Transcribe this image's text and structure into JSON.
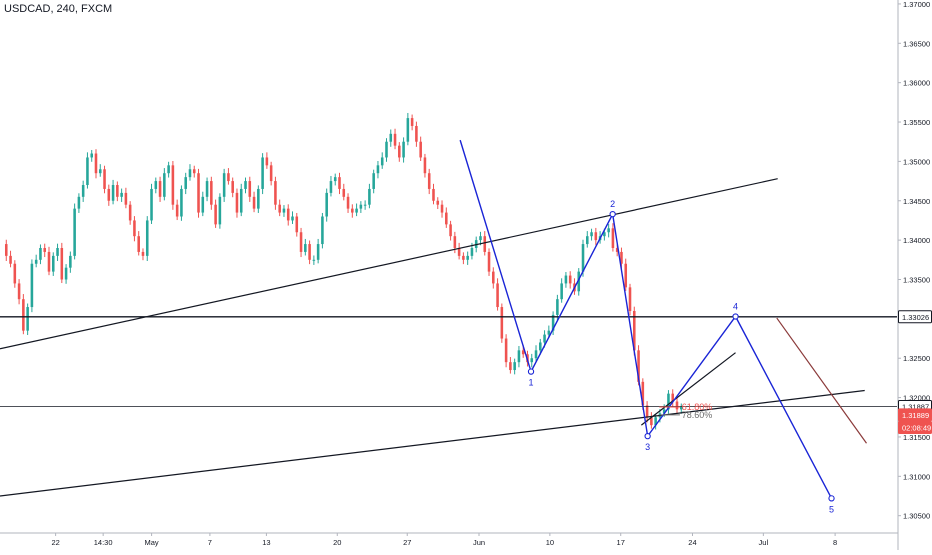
{
  "symbol_title": "USDCAD, 240, FXCM",
  "chart_data": {
    "type": "candlestick",
    "title": "USDCAD, 240, FXCM",
    "y_axis": {
      "ylim": [
        1.3028,
        1.3705
      ],
      "ticks": [
        1.305,
        1.31,
        1.315,
        1.32,
        1.325,
        1.33,
        1.335,
        1.34,
        1.345,
        1.35,
        1.355,
        1.36,
        1.365,
        1.37
      ],
      "tick_labels": [
        "1.30500",
        "1.31000",
        "1.31500",
        "1.32000",
        "1.32500",
        "1.33000",
        "1.33500",
        "1.34000",
        "1.34500",
        "1.35000",
        "1.35500",
        "1.36000",
        "1.36500",
        "1.37000"
      ]
    },
    "x_axis": {
      "ticks": [
        {
          "label": "22",
          "frac": 0.062
        },
        {
          "label": "14:30",
          "frac": 0.115
        },
        {
          "label": "May",
          "frac": 0.169
        },
        {
          "label": "7",
          "frac": 0.234
        },
        {
          "label": "13",
          "frac": 0.297
        },
        {
          "label": "20",
          "frac": 0.376
        },
        {
          "label": "27",
          "frac": 0.454
        },
        {
          "label": "Jun",
          "frac": 0.534
        },
        {
          "label": "10",
          "frac": 0.613
        },
        {
          "label": "17",
          "frac": 0.692
        },
        {
          "label": "24",
          "frac": 0.772
        },
        {
          "label": "Jul",
          "frac": 0.851
        },
        {
          "label": "8",
          "frac": 0.931
        }
      ]
    },
    "price_series": [
      1.3395,
      1.338,
      1.337,
      1.3345,
      1.3325,
      1.3285,
      1.3315,
      1.337,
      1.3375,
      1.339,
      1.3385,
      1.336,
      1.338,
      1.339,
      1.335,
      1.3365,
      1.338,
      1.344,
      1.3455,
      1.347,
      1.3505,
      1.351,
      1.3485,
      1.349,
      1.3465,
      1.345,
      1.347,
      1.3455,
      1.346,
      1.3445,
      1.3425,
      1.3405,
      1.3385,
      1.338,
      1.3425,
      1.3465,
      1.3475,
      1.3455,
      1.3485,
      1.3495,
      1.3445,
      1.343,
      1.3465,
      1.348,
      1.349,
      1.3485,
      1.3435,
      1.3455,
      1.3475,
      1.3445,
      1.342,
      1.3455,
      1.3485,
      1.3475,
      1.346,
      1.3435,
      1.3465,
      1.3475,
      1.3455,
      1.344,
      1.3465,
      1.3505,
      1.3495,
      1.3475,
      1.3445,
      1.3435,
      1.344,
      1.3425,
      1.343,
      1.341,
      1.3385,
      1.3395,
      1.3375,
      1.3375,
      1.3395,
      1.343,
      1.346,
      1.3475,
      1.348,
      1.3465,
      1.3455,
      1.344,
      1.3435,
      1.344,
      1.3445,
      1.3445,
      1.3465,
      1.3485,
      1.3495,
      1.3505,
      1.3525,
      1.3535,
      1.352,
      1.3505,
      1.3525,
      1.3555,
      1.3545,
      1.3525,
      1.3505,
      1.3485,
      1.3465,
      1.345,
      1.3445,
      1.3435,
      1.342,
      1.3405,
      1.339,
      1.338,
      1.3375,
      1.338,
      1.339,
      1.34,
      1.3405,
      1.3385,
      1.336,
      1.3345,
      1.3315,
      1.3275,
      1.3245,
      1.3235,
      1.3245,
      1.326,
      1.3255,
      1.3245,
      1.325,
      1.326,
      1.327,
      1.328,
      1.3285,
      1.3305,
      1.3325,
      1.3345,
      1.3355,
      1.3345,
      1.3335,
      1.336,
      1.3395,
      1.3405,
      1.341,
      1.34,
      1.3405,
      1.341,
      1.3415,
      1.339,
      1.3385,
      1.337,
      1.334,
      1.331,
      1.326,
      1.322,
      1.319,
      1.3175,
      1.3165,
      1.3175,
      1.318,
      1.3185,
      1.3205,
      1.3195,
      1.3185,
      1.3188
    ],
    "series_fracs": [
      0.0,
      0.7595
    ],
    "candle_colors": {
      "up": "#26a69a",
      "down": "#ef5350"
    },
    "trendlines": [
      {
        "name": "upper-channel-line",
        "x": [
          0.0,
          0.867
        ],
        "y": [
          1.3262,
          1.3478
        ],
        "color": "#131722"
      },
      {
        "name": "lower-channel-line",
        "x": [
          0.0,
          0.964
        ],
        "y": [
          1.3075,
          1.3209
        ],
        "color": "#131722"
      },
      {
        "name": "short-channel-line",
        "x": [
          0.715,
          0.82
        ],
        "y": [
          1.3165,
          1.3257
        ],
        "color": "#131722"
      },
      {
        "name": "target-line",
        "x": [
          0.866,
          0.966
        ],
        "y": [
          1.3301,
          1.3142
        ],
        "color": "#8b3a3a"
      }
    ],
    "horizontal_lines": [
      {
        "name": "resistance-line",
        "price": 1.33026,
        "color": "#131722",
        "width": 1.3
      },
      {
        "name": "current-price-line",
        "price": 1.31887,
        "color": "#131722",
        "width": 0.8
      }
    ],
    "wave_points": [
      {
        "label": "",
        "x": 0.513,
        "y": 1.3527
      },
      {
        "label": "1",
        "x": 0.592,
        "y": 1.3233
      },
      {
        "label": "2",
        "x": 0.683,
        "y": 1.3433
      },
      {
        "label": "3",
        "x": 0.722,
        "y": 1.3151
      },
      {
        "label": "4",
        "x": 0.82,
        "y": 1.3303
      },
      {
        "label": "5",
        "x": 0.927,
        "y": 1.3072
      }
    ],
    "wave_color": "#1a25d6",
    "fib_labels": [
      {
        "text": "61.80%",
        "x": 0.76,
        "y": 1.3188,
        "color": "#ef5350"
      },
      {
        "text": "78.60%",
        "x": 0.76,
        "y": 1.3178,
        "color": "#6b6b6b"
      }
    ],
    "price_tags": [
      {
        "text": "1.33026",
        "price": 1.33026,
        "bg": "#ffffff",
        "fg": "#131722",
        "border": "#131722"
      },
      {
        "text": "1.31887",
        "price": 1.31887,
        "bg": "#ffffff",
        "fg": "#131722",
        "border": "#131722"
      },
      {
        "text": "1.31889",
        "price": 1.3178,
        "bg": "#ef5350",
        "fg": "#ffffff",
        "border": "#ef5350"
      },
      {
        "text": "02:08:49",
        "price": 1.3162,
        "bg": "#ef5350",
        "fg": "#ffffff",
        "border": "#ef5350"
      }
    ]
  }
}
